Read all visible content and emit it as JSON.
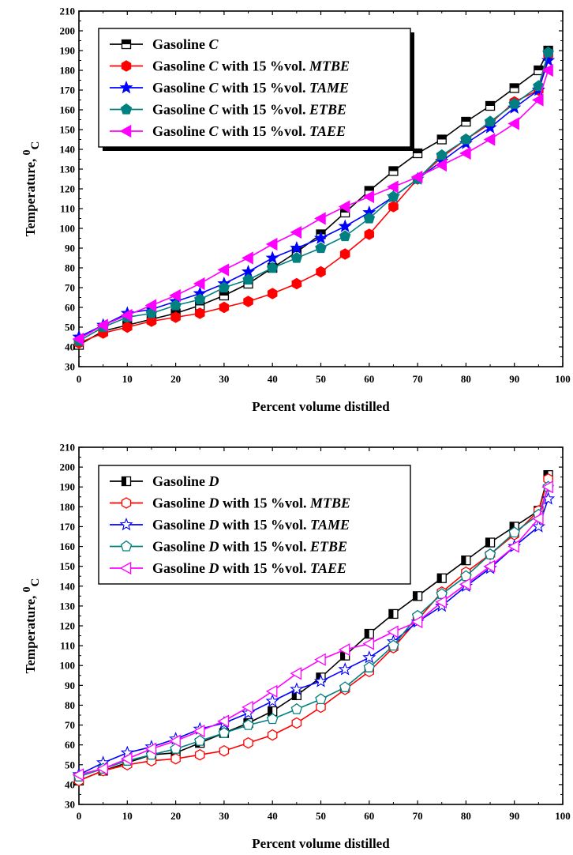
{
  "chart_data": [
    {
      "type": "line",
      "xlabel": "Percent volume distilled",
      "ylabel": "Temperature, ",
      "ylabel_unit_sup": "0",
      "ylabel_unit_sub": "C",
      "xlim": [
        0,
        100
      ],
      "ylim": [
        30,
        210
      ],
      "xticks": [
        "0",
        "10",
        "20",
        "30",
        "40",
        "50",
        "60",
        "70",
        "80",
        "90",
        "100"
      ],
      "yticks": [
        "30",
        "40",
        "50",
        "60",
        "70",
        "80",
        "90",
        "100",
        "110",
        "120",
        "130",
        "140",
        "150",
        "160",
        "170",
        "180",
        "190",
        "200",
        "210"
      ],
      "legend_position": "top-left",
      "x": [
        0,
        5,
        10,
        15,
        20,
        25,
        30,
        35,
        40,
        45,
        50,
        55,
        60,
        65,
        70,
        75,
        80,
        85,
        90,
        95,
        97
      ],
      "series": [
        {
          "legend": {
            "pre": "Gasoline ",
            "fuel": "C",
            "mid": "",
            "additive": ""
          },
          "color": "#000000",
          "marker": "square",
          "values": [
            41,
            48,
            51,
            54,
            57,
            61,
            66,
            72,
            80,
            88,
            97,
            108,
            119,
            129,
            138,
            145,
            154,
            162,
            171,
            180,
            190
          ]
        },
        {
          "legend": {
            "pre": "Gasoline ",
            "fuel": "C",
            "mid": " with 15 %vol. ",
            "additive": "MTBE"
          },
          "color": "#ff0000",
          "marker": "hexagon",
          "values": [
            42,
            47,
            50,
            53,
            55,
            57,
            60,
            63,
            67,
            72,
            78,
            87,
            97,
            111,
            125,
            136,
            145,
            153,
            164,
            170,
            188
          ]
        },
        {
          "legend": {
            "pre": "Gasoline ",
            "fuel": "C",
            "mid": " with 15 %vol. ",
            "additive": "TAME"
          },
          "color": "#0000ff",
          "marker": "star",
          "values": [
            45,
            51,
            57,
            59,
            63,
            67,
            72,
            78,
            85,
            90,
            95,
            101,
            108,
            116,
            125,
            134,
            143,
            151,
            161,
            170,
            185
          ]
        },
        {
          "legend": {
            "pre": "Gasoline ",
            "fuel": "C",
            "mid": " with 15 %vol. ",
            "additive": "ETBE"
          },
          "color": "#008080",
          "marker": "pentagon",
          "values": [
            43,
            50,
            55,
            57,
            61,
            64,
            70,
            74,
            80,
            85,
            90,
            96,
            105,
            116,
            125,
            137,
            145,
            154,
            163,
            172,
            189
          ]
        },
        {
          "legend": {
            "pre": "Gasoline ",
            "fuel": "C",
            "mid": " with 15 %vol. ",
            "additive": "TAEE"
          },
          "color": "#ff00ff",
          "marker": "triangle-left",
          "values": [
            44,
            51,
            56,
            61,
            66,
            72,
            79,
            85,
            92,
            98,
            105,
            111,
            116,
            121,
            126,
            132,
            138,
            145,
            153,
            165,
            180
          ]
        }
      ]
    },
    {
      "type": "line",
      "xlabel": "Percent volume distilled",
      "ylabel": "Temperature, ",
      "ylabel_unit_sup": "0",
      "ylabel_unit_sub": "C",
      "xlim": [
        0,
        100
      ],
      "ylim": [
        30,
        210
      ],
      "xticks": [
        "0",
        "10",
        "20",
        "30",
        "40",
        "50",
        "60",
        "70",
        "80",
        "90",
        "100"
      ],
      "yticks": [
        "30",
        "40",
        "50",
        "60",
        "70",
        "80",
        "90",
        "100",
        "110",
        "120",
        "130",
        "140",
        "150",
        "160",
        "170",
        "180",
        "190",
        "200",
        "210"
      ],
      "legend_position": "top-left",
      "x": [
        0,
        5,
        10,
        15,
        20,
        25,
        30,
        35,
        40,
        45,
        50,
        55,
        60,
        65,
        70,
        75,
        80,
        85,
        90,
        95,
        97
      ],
      "series": [
        {
          "legend": {
            "pre": "Gasoline ",
            "fuel": "D",
            "mid": "",
            "additive": ""
          },
          "color": "#000000",
          "marker": "square",
          "values": [
            42,
            47,
            51,
            55,
            56,
            61,
            66,
            71,
            77,
            85,
            94,
            105,
            116,
            126,
            135,
            144,
            153,
            162,
            170,
            178,
            196
          ]
        },
        {
          "legend": {
            "pre": "Gasoline ",
            "fuel": "D",
            "mid": " with 15 %vol. ",
            "additive": "MTBE"
          },
          "color": "#ff0000",
          "marker": "hexagon",
          "values": [
            42,
            47,
            50,
            52,
            53,
            55,
            57,
            61,
            65,
            71,
            79,
            88,
            97,
            109,
            123,
            137,
            147,
            156,
            166,
            178,
            194
          ]
        },
        {
          "legend": {
            "pre": "Gasoline ",
            "fuel": "D",
            "mid": " with 15 %vol. ",
            "additive": "TAME"
          },
          "color": "#0000ff",
          "marker": "star",
          "values": [
            45,
            51,
            56,
            59,
            63,
            68,
            71,
            76,
            82,
            88,
            92,
            98,
            104,
            112,
            122,
            130,
            140,
            149,
            160,
            170,
            184
          ]
        },
        {
          "legend": {
            "pre": "Gasoline ",
            "fuel": "D",
            "mid": " with 15 %vol. ",
            "additive": "ETBE"
          },
          "color": "#008080",
          "marker": "pentagon",
          "values": [
            44,
            48,
            52,
            55,
            58,
            62,
            66,
            70,
            73,
            78,
            83,
            89,
            99,
            110,
            125,
            136,
            145,
            156,
            167,
            176,
            190
          ]
        },
        {
          "legend": {
            "pre": "Gasoline ",
            "fuel": "D",
            "mid": " with 15 %vol. ",
            "additive": "TAEE"
          },
          "color": "#ff00ff",
          "marker": "triangle-left",
          "values": [
            45,
            48,
            53,
            58,
            62,
            67,
            72,
            79,
            87,
            96,
            103,
            108,
            111,
            117,
            122,
            132,
            141,
            150,
            160,
            174,
            190
          ]
        }
      ]
    }
  ]
}
